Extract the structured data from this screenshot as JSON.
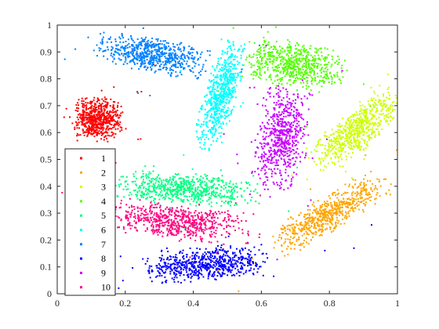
{
  "chart_data": {
    "type": "scatter",
    "title": "",
    "xlabel": "",
    "ylabel": "",
    "xlim": [
      0,
      1
    ],
    "ylim": [
      0,
      1
    ],
    "xticks": [
      "0",
      "0.2",
      "0.4",
      "0.6",
      "0.8",
      "1"
    ],
    "yticks": [
      "0",
      "0.1",
      "0.2",
      "0.3",
      "0.4",
      "0.5",
      "0.6",
      "0.7",
      "0.8",
      "0.9",
      "1"
    ],
    "grid": false,
    "legend_position": "lower-left",
    "series": [
      {
        "name": "1",
        "color": "#ff0000",
        "cluster": {
          "cx": 0.12,
          "cy": 0.65,
          "sx": 0.032,
          "sy": 0.038,
          "angle": 0
        }
      },
      {
        "name": "2",
        "color": "#ffa500",
        "cluster": {
          "cx": 0.8,
          "cy": 0.3,
          "sx": 0.095,
          "sy": 0.028,
          "angle": 38
        }
      },
      {
        "name": "3",
        "color": "#cdff00",
        "cluster": {
          "cx": 0.88,
          "cy": 0.61,
          "sx": 0.085,
          "sy": 0.03,
          "angle": 48
        }
      },
      {
        "name": "4",
        "color": "#55ff00",
        "cluster": {
          "cx": 0.7,
          "cy": 0.85,
          "sx": 0.07,
          "sy": 0.04,
          "angle": -12
        }
      },
      {
        "name": "5",
        "color": "#00ff80",
        "cluster": {
          "cx": 0.37,
          "cy": 0.39,
          "sx": 0.1,
          "sy": 0.028,
          "angle": -4
        }
      },
      {
        "name": "6",
        "color": "#00ffff",
        "cluster": {
          "cx": 0.48,
          "cy": 0.74,
          "sx": 0.095,
          "sy": 0.022,
          "angle": 78
        }
      },
      {
        "name": "7",
        "color": "#0080ff",
        "cluster": {
          "cx": 0.28,
          "cy": 0.89,
          "sx": 0.078,
          "sy": 0.03,
          "angle": -14
        }
      },
      {
        "name": "8",
        "color": "#0000ff",
        "cluster": {
          "cx": 0.44,
          "cy": 0.11,
          "sx": 0.085,
          "sy": 0.03,
          "angle": 6
        }
      },
      {
        "name": "9",
        "color": "#c800ff",
        "cluster": {
          "cx": 0.66,
          "cy": 0.58,
          "sx": 0.09,
          "sy": 0.035,
          "angle": 84
        }
      },
      {
        "name": "10",
        "color": "#ff0080",
        "cluster": {
          "cx": 0.35,
          "cy": 0.27,
          "sx": 0.1,
          "sy": 0.03,
          "angle": -8
        }
      }
    ]
  }
}
